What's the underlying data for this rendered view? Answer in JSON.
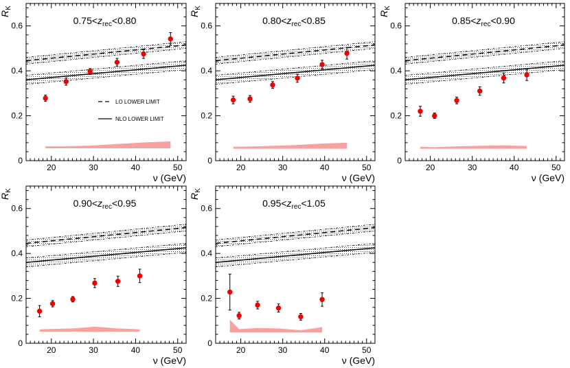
{
  "figure": {
    "ylabel_main": "R",
    "ylabel_sub": "K",
    "xlabel": "ν (GeV)",
    "legend": {
      "lo": "LO LOWER LIMIT",
      "nlo": "NLO LOWER LIMIT"
    },
    "colors": {
      "marker": "#ee0000",
      "syst_band": "#f7a1a1",
      "line": "#000000"
    }
  },
  "chart_data": [
    {
      "type": "scatter",
      "title": "0.75<z_rec<0.80",
      "title_parts": {
        "lo": "0.75<",
        "sym": "z",
        "sub": "rec",
        "hi": "<0.80"
      },
      "xlabel": "ν (GeV)",
      "ylabel": "R_K",
      "xlim": [
        14,
        52
      ],
      "ylim": [
        0,
        0.7
      ],
      "xticks": [
        20,
        30,
        40,
        50
      ],
      "yticks": [
        0.2,
        0.4,
        0.6
      ],
      "x": [
        18.6,
        23.5,
        29.2,
        35.6,
        41.9,
        48.3
      ],
      "y": [
        0.278,
        0.352,
        0.397,
        0.438,
        0.475,
        0.542
      ],
      "yerr": [
        0.014,
        0.016,
        0.013,
        0.017,
        0.02,
        0.028
      ],
      "syst_band": {
        "x": [
          18.6,
          23.5,
          29.2,
          35.6,
          41.9,
          48.3
        ],
        "lower": [
          0.055,
          0.055,
          0.055,
          0.055,
          0.055,
          0.055
        ],
        "upper": [
          0.064,
          0.064,
          0.067,
          0.074,
          0.081,
          0.086
        ]
      },
      "lo_band": {
        "x": [
          14,
          52
        ],
        "center": [
          0.445,
          0.515
        ],
        "halfwidth": 0.015
      },
      "nlo_band": {
        "x": [
          14,
          52
        ],
        "center": [
          0.36,
          0.425
        ],
        "halfwidth": 0.02
      },
      "show_legend": true
    },
    {
      "type": "scatter",
      "title": "0.80<z_rec<0.85",
      "title_parts": {
        "lo": "0.80<",
        "sym": "z",
        "sub": "rec",
        "hi": "<0.85"
      },
      "xlabel": "ν (GeV)",
      "ylabel": "R_K",
      "xlim": [
        14,
        52
      ],
      "ylim": [
        0,
        0.7
      ],
      "xticks": [
        20,
        30,
        40,
        50
      ],
      "yticks": [
        0.2,
        0.4,
        0.6
      ],
      "x": [
        18.2,
        22.2,
        27.6,
        33.5,
        39.4,
        45.3
      ],
      "y": [
        0.27,
        0.275,
        0.337,
        0.367,
        0.428,
        0.478
      ],
      "yerr": [
        0.017,
        0.015,
        0.015,
        0.018,
        0.019,
        0.026
      ],
      "syst_band": {
        "x": [
          18.2,
          22.2,
          27.6,
          33.5,
          39.4,
          45.3
        ],
        "lower": [
          0.053,
          0.053,
          0.053,
          0.053,
          0.053,
          0.053
        ],
        "upper": [
          0.062,
          0.063,
          0.066,
          0.07,
          0.076,
          0.08
        ]
      },
      "lo_band": {
        "x": [
          14,
          52
        ],
        "center": [
          0.445,
          0.515
        ],
        "halfwidth": 0.015
      },
      "nlo_band": {
        "x": [
          14,
          52
        ],
        "center": [
          0.36,
          0.425
        ],
        "halfwidth": 0.02
      },
      "show_legend": false
    },
    {
      "type": "scatter",
      "title": "0.85<z_rec<0.90",
      "title_parts": {
        "lo": "0.85<",
        "sym": "z",
        "sub": "rec",
        "hi": "<0.90"
      },
      "xlabel": "ν (GeV)",
      "ylabel": "R_K",
      "xlim": [
        14,
        52
      ],
      "ylim": [
        0,
        0.7
      ],
      "xticks": [
        20,
        30,
        40,
        50
      ],
      "yticks": [
        0.2,
        0.4,
        0.6
      ],
      "x": [
        17.6,
        21.0,
        26.3,
        31.8,
        37.5,
        43.0
      ],
      "y": [
        0.22,
        0.2,
        0.268,
        0.31,
        0.368,
        0.382
      ],
      "yerr": [
        0.022,
        0.012,
        0.015,
        0.019,
        0.022,
        0.025
      ],
      "syst_band": {
        "x": [
          17.6,
          21.0,
          26.3,
          31.8,
          37.5,
          43.0
        ],
        "lower": [
          0.053,
          0.053,
          0.053,
          0.053,
          0.053,
          0.053
        ],
        "upper": [
          0.062,
          0.06,
          0.064,
          0.066,
          0.068,
          0.065
        ]
      },
      "lo_band": {
        "x": [
          14,
          52
        ],
        "center": [
          0.445,
          0.515
        ],
        "halfwidth": 0.015
      },
      "nlo_band": {
        "x": [
          14,
          52
        ],
        "center": [
          0.36,
          0.425
        ],
        "halfwidth": 0.02
      },
      "show_legend": false
    },
    {
      "type": "scatter",
      "title": "0.90<z_rec<0.95",
      "title_parts": {
        "lo": "0.90<",
        "sym": "z",
        "sub": "rec",
        "hi": "<0.95"
      },
      "xlabel": "ν (GeV)",
      "ylabel": "R_K",
      "xlim": [
        14,
        52
      ],
      "ylim": [
        0,
        0.7
      ],
      "xticks": [
        20,
        30,
        40,
        50
      ],
      "yticks": [
        0.2,
        0.4,
        0.6
      ],
      "x": [
        17.2,
        20.3,
        25.1,
        30.3,
        35.8,
        41.0
      ],
      "y": [
        0.143,
        0.176,
        0.196,
        0.268,
        0.276,
        0.3
      ],
      "yerr": [
        0.025,
        0.014,
        0.012,
        0.02,
        0.023,
        0.03
      ],
      "syst_band": {
        "x": [
          17.2,
          20.3,
          25.1,
          30.3,
          35.8,
          41.0
        ],
        "lower": [
          0.052,
          0.052,
          0.052,
          0.05,
          0.052,
          0.052
        ],
        "upper": [
          0.062,
          0.064,
          0.066,
          0.074,
          0.066,
          0.062
        ]
      },
      "lo_band": {
        "x": [
          14,
          52
        ],
        "center": [
          0.445,
          0.515
        ],
        "halfwidth": 0.015
      },
      "nlo_band": {
        "x": [
          14,
          52
        ],
        "center": [
          0.36,
          0.425
        ],
        "halfwidth": 0.02
      },
      "show_legend": false
    },
    {
      "type": "scatter",
      "title": "0.95<z_rec<1.05",
      "title_parts": {
        "lo": "0.95<",
        "sym": "z",
        "sub": "rec",
        "hi": "<1.05"
      },
      "xlabel": "ν (GeV)",
      "ylabel": "R_K",
      "xlim": [
        14,
        52
      ],
      "ylim": [
        0,
        0.7
      ],
      "xticks": [
        20,
        30,
        40,
        50
      ],
      "yticks": [
        0.2,
        0.4,
        0.6
      ],
      "x": [
        17.4,
        19.6,
        24.0,
        29.0,
        34.3,
        39.4
      ],
      "y": [
        0.228,
        0.123,
        0.17,
        0.157,
        0.118,
        0.195
      ],
      "yerr": [
        0.08,
        0.015,
        0.017,
        0.018,
        0.015,
        0.03
      ],
      "syst_band": {
        "x": [
          17.4,
          19.6,
          24.0,
          29.0,
          34.3,
          39.4
        ],
        "lower": [
          0.048,
          0.048,
          0.048,
          0.048,
          0.048,
          0.048
        ],
        "upper": [
          0.105,
          0.063,
          0.068,
          0.066,
          0.058,
          0.072
        ]
      },
      "lo_band": {
        "x": [
          14,
          52
        ],
        "center": [
          0.445,
          0.515
        ],
        "halfwidth": 0.015
      },
      "nlo_band": {
        "x": [
          14,
          52
        ],
        "center": [
          0.36,
          0.425
        ],
        "halfwidth": 0.02
      },
      "show_legend": false
    }
  ]
}
